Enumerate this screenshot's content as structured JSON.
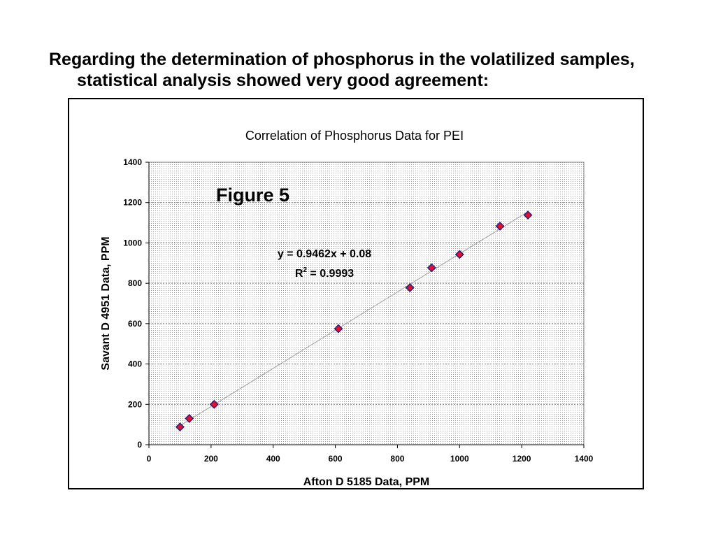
{
  "heading": "Regarding the determination of phosphorus in the volatilized samples, statistical analysis showed very good agreement:",
  "chart_data": {
    "type": "scatter",
    "title": "Correlation of Phosphorus  Data for PEI",
    "annotation": "Figure 5",
    "xlabel": "Afton D 5185  Data, PPM",
    "ylabel": "Savant D 4951 Data, PPM",
    "xlim": [
      0,
      1400
    ],
    "ylim": [
      0,
      1400
    ],
    "xticks": [
      0,
      200,
      400,
      600,
      800,
      1000,
      1200,
      1400
    ],
    "yticks": [
      0,
      200,
      400,
      600,
      800,
      1000,
      1200,
      1400
    ],
    "grid": true,
    "trendline": {
      "equation": "y = 0.9462x + 0.08",
      "r2_prefix": "R",
      "r2_sup": "2",
      "r2_value": " = 0.9993",
      "slope": 0.9462,
      "intercept": 0.08
    },
    "points": [
      {
        "x": 100,
        "y": 88
      },
      {
        "x": 130,
        "y": 130
      },
      {
        "x": 210,
        "y": 200
      },
      {
        "x": 610,
        "y": 575
      },
      {
        "x": 840,
        "y": 778
      },
      {
        "x": 910,
        "y": 877
      },
      {
        "x": 1000,
        "y": 943
      },
      {
        "x": 1130,
        "y": 1083
      },
      {
        "x": 1220,
        "y": 1138
      }
    ],
    "marker_color": "#e0102f",
    "marker_edge": "#1a1a80"
  }
}
